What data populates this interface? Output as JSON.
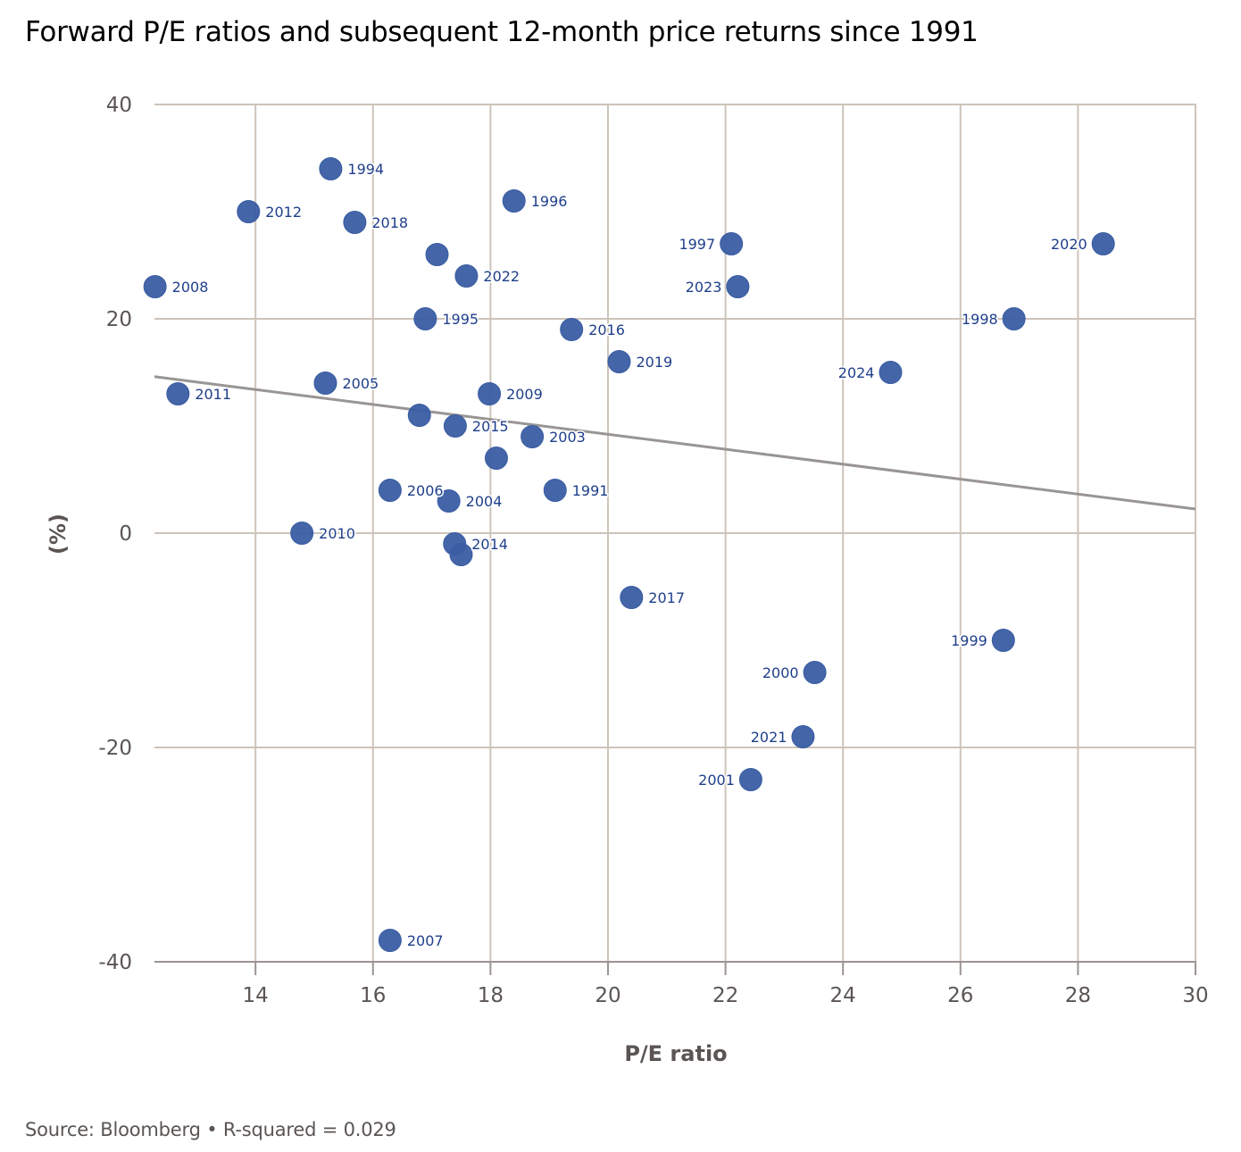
{
  "chart_data": {
    "type": "scatter",
    "title": "Forward P/E ratios and subsequent 12-month price returns since 1991",
    "xlabel": "P/E ratio",
    "ylabel": "(%)",
    "xlim": [
      12.28,
      30
    ],
    "ylim": [
      -40,
      40
    ],
    "xticks": [
      14,
      16,
      18,
      20,
      22,
      24,
      26,
      28,
      30
    ],
    "yticks": [
      40,
      20,
      0,
      -20,
      -40
    ],
    "grid": true,
    "legend": "none",
    "marker_color": "#3a5da3",
    "trendline_color": "#999594",
    "trendline": {
      "x": [
        12.28,
        30
      ],
      "y": [
        14.6,
        2.25
      ]
    },
    "points": [
      {
        "label": "1991",
        "x": 19.1,
        "y": 4,
        "label_side": "right"
      },
      {
        "label": "1994",
        "x": 15.28,
        "y": 34,
        "label_side": "right"
      },
      {
        "label": "1995",
        "x": 16.89,
        "y": 20,
        "label_side": "right"
      },
      {
        "label": "1996",
        "x": 18.4,
        "y": 31,
        "label_side": "right"
      },
      {
        "label": "1997",
        "x": 22.1,
        "y": 27,
        "label_side": "left"
      },
      {
        "label": "1998",
        "x": 26.91,
        "y": 20,
        "label_side": "left"
      },
      {
        "label": "1999",
        "x": 26.73,
        "y": -10,
        "label_side": "left"
      },
      {
        "label": "2000",
        "x": 23.52,
        "y": -13,
        "label_side": "left"
      },
      {
        "label": "2001",
        "x": 22.43,
        "y": -23,
        "label_side": "left"
      },
      {
        "label": "2003",
        "x": 18.71,
        "y": 9,
        "label_side": "right"
      },
      {
        "label": "2004",
        "x": 17.29,
        "y": 3,
        "label_side": "right"
      },
      {
        "label": "2005",
        "x": 15.19,
        "y": 14,
        "label_side": "right"
      },
      {
        "label": "2006",
        "x": 16.29,
        "y": 4,
        "label_side": "right"
      },
      {
        "label": "2007",
        "x": 16.29,
        "y": -38,
        "label_side": "right"
      },
      {
        "label": "2008",
        "x": 12.29,
        "y": 23,
        "label_side": "right"
      },
      {
        "label": "2009",
        "x": 17.98,
        "y": 13,
        "label_side": "right"
      },
      {
        "label": "2010",
        "x": 14.79,
        "y": 0,
        "label_side": "right"
      },
      {
        "label": "2011",
        "x": 12.68,
        "y": 13,
        "label_side": "right"
      },
      {
        "label": "2012",
        "x": 13.88,
        "y": 30,
        "label_side": "right"
      },
      {
        "label": "2014",
        "x": 17.39,
        "y": -1,
        "label_side": "right"
      },
      {
        "label": "2015",
        "x": 17.4,
        "y": 10,
        "label_side": "right"
      },
      {
        "label": "2016",
        "x": 19.38,
        "y": 19,
        "label_side": "right"
      },
      {
        "label": "2017",
        "x": 20.4,
        "y": -6,
        "label_side": "right"
      },
      {
        "label": "2018",
        "x": 15.69,
        "y": 29,
        "label_side": "right"
      },
      {
        "label": "2019",
        "x": 20.19,
        "y": 16,
        "label_side": "right"
      },
      {
        "label": "2020",
        "x": 28.43,
        "y": 27,
        "label_side": "left"
      },
      {
        "label": "2021",
        "x": 23.32,
        "y": -19,
        "label_side": "left"
      },
      {
        "label": "2022",
        "x": 17.59,
        "y": 24,
        "label_side": "right"
      },
      {
        "label": "2023",
        "x": 22.21,
        "y": 23,
        "label_side": "left"
      },
      {
        "label": "2024",
        "x": 24.81,
        "y": 15,
        "label_side": "left"
      },
      {
        "label": "",
        "x": 17.09,
        "y": 26,
        "label_side": "none"
      },
      {
        "label": "",
        "x": 16.79,
        "y": 11,
        "label_side": "none"
      },
      {
        "label": "",
        "x": 18.1,
        "y": 7,
        "label_side": "none"
      },
      {
        "label": "",
        "x": 17.5,
        "y": -2,
        "label_side": "none"
      }
    ]
  },
  "footer": {
    "text": "Source: Bloomberg • R-squared = 0.029"
  }
}
